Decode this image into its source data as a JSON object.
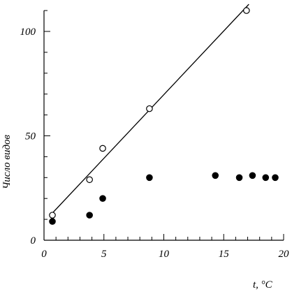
{
  "chart_data": {
    "type": "scatter",
    "title": "",
    "xlabel": "t, °C",
    "ylabel": "Число видов",
    "xlim": [
      0,
      20
    ],
    "ylim": [
      0,
      110
    ],
    "x_ticks": [
      0,
      5,
      10,
      15,
      20
    ],
    "y_ticks": [
      0,
      50,
      100
    ],
    "x_tick_labels": [
      "0",
      "5",
      "10",
      "15",
      "20"
    ],
    "y_tick_labels": [
      "0",
      "50",
      "100"
    ],
    "grid": false,
    "series": [
      {
        "marker": "open-circle",
        "points": [
          {
            "x": 0.7,
            "y": 12
          },
          {
            "x": 3.8,
            "y": 29
          },
          {
            "x": 4.9,
            "y": 44
          },
          {
            "x": 8.8,
            "y": 63
          },
          {
            "x": 16.9,
            "y": 110
          }
        ]
      },
      {
        "marker": "filled-circle",
        "points": [
          {
            "x": 0.7,
            "y": 9
          },
          {
            "x": 3.8,
            "y": 12
          },
          {
            "x": 4.9,
            "y": 20
          },
          {
            "x": 8.8,
            "y": 30
          },
          {
            "x": 14.3,
            "y": 31
          },
          {
            "x": 16.3,
            "y": 30
          },
          {
            "x": 17.4,
            "y": 31
          },
          {
            "x": 18.5,
            "y": 30
          },
          {
            "x": 19.3,
            "y": 30
          }
        ]
      }
    ],
    "trend_line": {
      "from": {
        "x": 0.7,
        "y": 13
      },
      "to": {
        "x": 17.1,
        "y": 113
      }
    }
  },
  "colors": {
    "ink": "#000000",
    "background": "#ffffff"
  }
}
